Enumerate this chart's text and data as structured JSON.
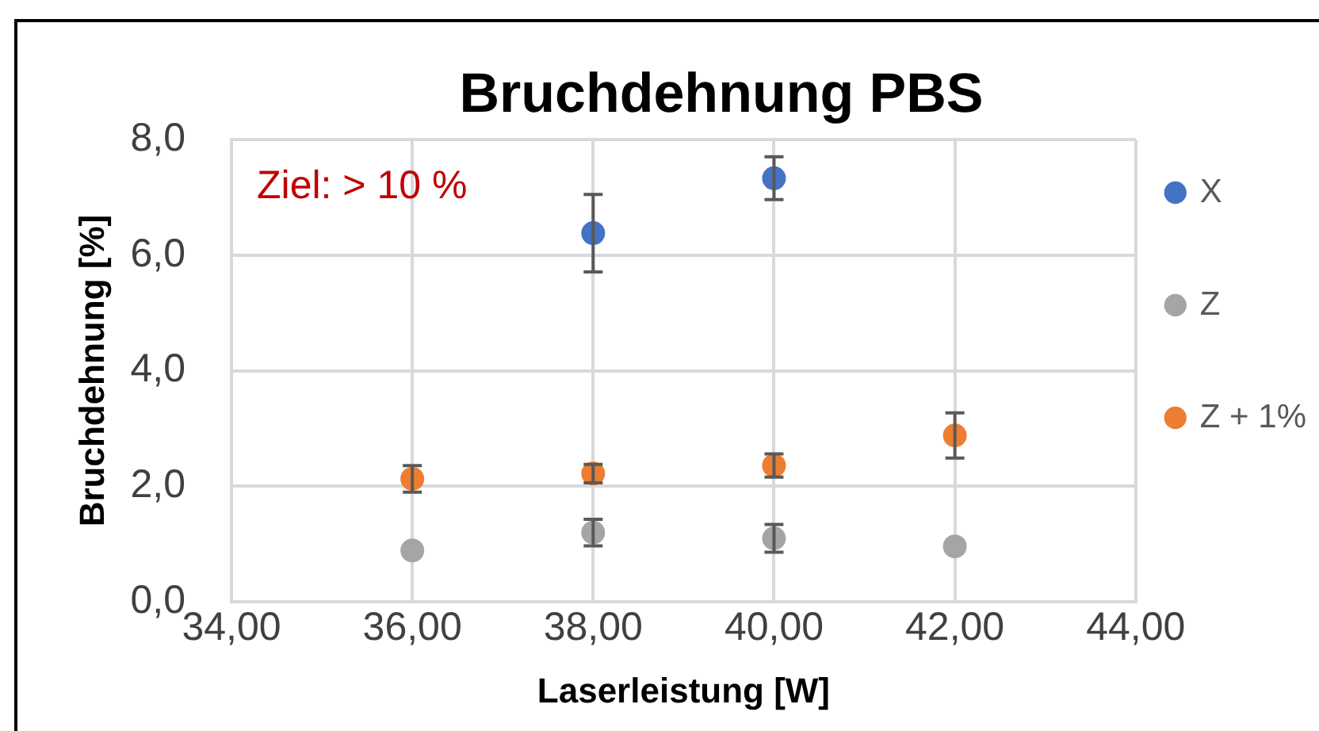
{
  "chart_data": {
    "type": "scatter",
    "title": "Bruchdehnung PBS",
    "xlabel": "Laserleistung [W]",
    "ylabel": "Bruchdehnung [%]",
    "annotations": [
      "Ziel: > 10 %"
    ],
    "series": [
      {
        "name": "X",
        "color": "#4472c4",
        "x": [
          38,
          40
        ],
        "values": [
          6.38,
          7.33
        ],
        "errors": [
          0.67,
          0.37
        ]
      },
      {
        "name": "Z",
        "color": "#a5a5a5",
        "x": [
          36,
          38,
          40,
          42
        ],
        "values": [
          0.89,
          1.2,
          1.1,
          0.96
        ],
        "errors": [
          null,
          0.23,
          0.24,
          null
        ]
      },
      {
        "name": "Z + 1%",
        "color": "#ed7d31",
        "x": [
          36,
          38,
          40,
          42
        ],
        "values": [
          2.13,
          2.22,
          2.36,
          2.88
        ],
        "errors": [
          0.23,
          0.16,
          0.2,
          0.39
        ]
      }
    ],
    "xlim": [
      34,
      44
    ],
    "xticks": [
      {
        "value": 34,
        "label": "34,00"
      },
      {
        "value": 36,
        "label": "36,00"
      },
      {
        "value": 38,
        "label": "38,00"
      },
      {
        "value": 40,
        "label": "40,00"
      },
      {
        "value": 42,
        "label": "42,00"
      },
      {
        "value": 44,
        "label": "44,00"
      }
    ],
    "ylim": [
      0,
      8
    ],
    "yticks": [
      {
        "value": 0,
        "label": "0,0"
      },
      {
        "value": 2,
        "label": "2,0"
      },
      {
        "value": 4,
        "label": "4,0"
      },
      {
        "value": 6,
        "label": "6,0"
      },
      {
        "value": 8,
        "label": "8,0"
      }
    ],
    "grid": true,
    "legend": "right",
    "marker": "circle"
  }
}
